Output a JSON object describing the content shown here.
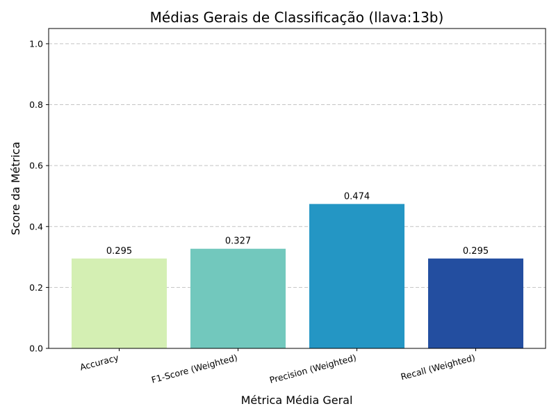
{
  "chart_data": {
    "type": "bar",
    "title": "Médias Gerais de Classificação (llava:13b)",
    "xlabel": "Métrica Média Geral",
    "ylabel": "Score da Métrica",
    "categories": [
      "Accuracy",
      "F1-Score (Weighted)",
      "Precision (Weighted)",
      "Recall (Weighted)"
    ],
    "values": [
      0.295,
      0.327,
      0.474,
      0.295
    ],
    "value_labels": [
      "0.295",
      "0.327",
      "0.474",
      "0.295"
    ],
    "colors": [
      "#d4efb3",
      "#72c8bd",
      "#2496c4",
      "#234ea0"
    ],
    "ylim": [
      0,
      1.05
    ],
    "yticks": [
      0.0,
      0.2,
      0.4,
      0.6,
      0.8,
      1.0
    ],
    "ytick_labels": [
      "0.0",
      "0.2",
      "0.4",
      "0.6",
      "0.8",
      "1.0"
    ],
    "grid": "y-dashed",
    "legend": "none"
  }
}
